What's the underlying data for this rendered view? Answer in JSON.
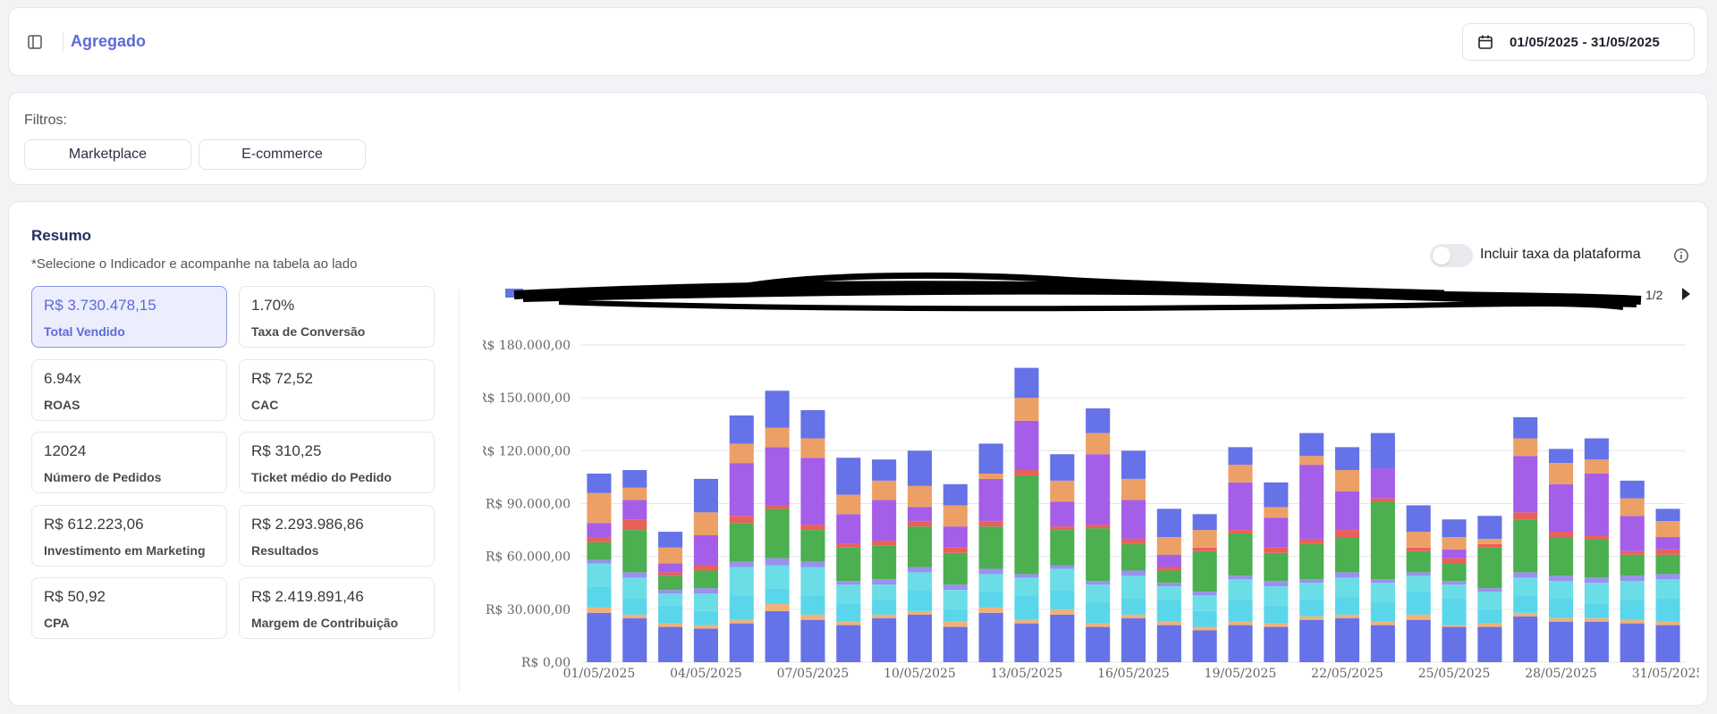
{
  "header": {
    "title": "Agregado",
    "date_range": "01/05/2025 - 31/05/2025",
    "icons": {
      "sidebar_toggle": "sidebar-toggle-icon",
      "calendar": "calendar-icon"
    }
  },
  "filters": {
    "label": "Filtros:",
    "chips": [
      "Marketplace",
      "E-commerce"
    ]
  },
  "summary": {
    "title": "Resumo",
    "subtitle": "*Selecione o Indicador e acompanhe na tabela ao lado",
    "kpis": [
      {
        "value": "R$ 3.730.478,15",
        "label": "Total Vendido",
        "active": true
      },
      {
        "value": "1.70%",
        "label": "Taxa de Conversão"
      },
      {
        "value": "6.94x",
        "label": "ROAS"
      },
      {
        "value": "R$ 72,52",
        "label": "CAC"
      },
      {
        "value": "12024",
        "label": "Número de Pedidos"
      },
      {
        "value": "R$ 310,25",
        "label": "Ticket médio do Pedido"
      },
      {
        "value": "R$ 612.223,06",
        "label": "Investimento em Marketing"
      },
      {
        "value": "R$ 2.293.986,86",
        "label": "Resultados"
      },
      {
        "value": "R$ 50,92",
        "label": "CPA"
      },
      {
        "value": "R$ 2.419.891,46",
        "label": "Margem de Contribuição"
      }
    ],
    "toggle": {
      "label": "Incluir taxa da plataforma",
      "on": false
    },
    "legend_page": "1/2"
  },
  "chart_data": {
    "type": "bar",
    "stacked": true,
    "ylim": [
      0,
      180000
    ],
    "y_ticks": [
      "R$ 0,00",
      "R$ 30.000,00",
      "R$ 60.000,00",
      "R$ 90.000,00",
      "R$ 120.000,00",
      "R$ 150.000,00",
      "R$ 180.000,00"
    ],
    "x_tick_labels": [
      "01/05/2025",
      "04/05/2025",
      "07/05/2025",
      "10/05/2025",
      "13/05/2025",
      "16/05/2025",
      "19/05/2025",
      "22/05/2025",
      "25/05/2025",
      "28/05/2025",
      "31/05/2025"
    ],
    "categories": [
      "01/05/2025",
      "02/05/2025",
      "03/05/2025",
      "04/05/2025",
      "05/05/2025",
      "06/05/2025",
      "07/05/2025",
      "08/05/2025",
      "09/05/2025",
      "10/05/2025",
      "11/05/2025",
      "12/05/2025",
      "13/05/2025",
      "14/05/2025",
      "15/05/2025",
      "16/05/2025",
      "17/05/2025",
      "18/05/2025",
      "19/05/2025",
      "20/05/2025",
      "21/05/2025",
      "22/05/2025",
      "23/05/2025",
      "24/05/2025",
      "25/05/2025",
      "26/05/2025",
      "27/05/2025",
      "28/05/2025",
      "29/05/2025",
      "30/05/2025",
      "31/05/2025"
    ],
    "colors": [
      "#6572e8",
      "#f0b27a",
      "#5ad6ea",
      "#6bdde6",
      "#9b8ff0",
      "#4caf50",
      "#e9605a",
      "#a55ee8",
      "#eda065",
      "#6572e8"
    ],
    "series": [
      {
        "values": [
          28000,
          25000,
          20000,
          19000,
          22000,
          29000,
          24000,
          21000,
          25000,
          27000,
          20000,
          28000,
          22000,
          27000,
          20000,
          25000,
          21000,
          18000,
          21000,
          20000,
          24000,
          25000,
          21000,
          24000,
          20000,
          20000,
          26000,
          23000,
          23000,
          22000,
          21000
        ]
      },
      {
        "values": [
          3000,
          2000,
          2000,
          2000,
          2000,
          4000,
          3000,
          2000,
          2000,
          2000,
          3000,
          3000,
          2000,
          3000,
          2000,
          2000,
          2000,
          2000,
          2000,
          2000,
          2000,
          2000,
          2000,
          3000,
          1000,
          2000,
          2000,
          2000,
          2000,
          2000,
          2000
        ]
      },
      {
        "values": [
          12000,
          9000,
          10000,
          8000,
          14000,
          9000,
          11000,
          10000,
          8000,
          12000,
          7000,
          9000,
          14000,
          11000,
          12000,
          9000,
          12000,
          9000,
          12000,
          10000,
          9000,
          10000,
          11000,
          13000,
          15000,
          8000,
          10000,
          11000,
          8000,
          11000,
          13000
        ]
      },
      {
        "values": [
          13000,
          12000,
          7000,
          10000,
          16000,
          13000,
          16000,
          11000,
          9000,
          10000,
          11000,
          10000,
          10000,
          12000,
          10000,
          13000,
          8000,
          9000,
          12000,
          11000,
          10000,
          11000,
          11000,
          9000,
          8000,
          10000,
          10000,
          10000,
          12000,
          11000,
          11000
        ]
      },
      {
        "values": [
          2000,
          3000,
          2000,
          3000,
          3000,
          4000,
          3000,
          2000,
          3000,
          3000,
          3000,
          3000,
          2000,
          2000,
          2000,
          3000,
          2000,
          2000,
          2000,
          3000,
          2000,
          3000,
          2000,
          2000,
          2000,
          2000,
          3000,
          3000,
          3000,
          3000,
          3000
        ]
      },
      {
        "values": [
          10000,
          24000,
          8000,
          10000,
          22000,
          28000,
          18000,
          19000,
          19000,
          23000,
          18000,
          24000,
          56000,
          20000,
          30000,
          15000,
          7000,
          23000,
          24000,
          16000,
          20000,
          20000,
          44000,
          12000,
          10000,
          23000,
          30000,
          22000,
          22000,
          12000,
          11000
        ]
      },
      {
        "values": [
          3000,
          6000,
          2000,
          3000,
          4000,
          2000,
          3000,
          2000,
          3000,
          3000,
          3000,
          3000,
          3000,
          2000,
          2000,
          3000,
          2000,
          2000,
          2000,
          3000,
          3000,
          4000,
          2000,
          2000,
          3000,
          2000,
          4000,
          3000,
          2000,
          2000,
          3000
        ]
      },
      {
        "values": [
          8000,
          11000,
          5000,
          17000,
          30000,
          33000,
          38000,
          17000,
          23000,
          8000,
          12000,
          24000,
          28000,
          14000,
          40000,
          22000,
          7000,
          0,
          27000,
          17000,
          42000,
          22000,
          17000,
          0,
          5000,
          0,
          32000,
          27000,
          35000,
          20000,
          7000
        ]
      },
      {
        "values": [
          17000,
          7000,
          9000,
          13000,
          11000,
          11000,
          11000,
          11000,
          11000,
          12000,
          12000,
          3000,
          13000,
          12000,
          12000,
          12000,
          10000,
          10000,
          10000,
          6000,
          5000,
          12000,
          0,
          9000,
          7000,
          3000,
          10000,
          12000,
          8000,
          10000,
          9000
        ]
      },
      {
        "values": [
          11000,
          10000,
          9000,
          19000,
          16000,
          21000,
          16000,
          21000,
          12000,
          20000,
          12000,
          17000,
          17000,
          15000,
          14000,
          16000,
          16000,
          9000,
          10000,
          14000,
          13000,
          13000,
          20000,
          15000,
          10000,
          13000,
          12000,
          8000,
          12000,
          10000,
          7000
        ]
      }
    ]
  }
}
